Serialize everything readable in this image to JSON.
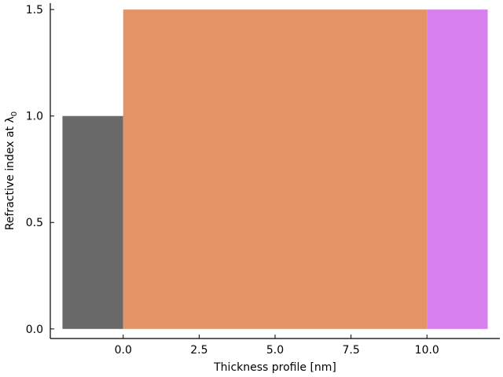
{
  "chart_data": {
    "type": "bar",
    "title": "",
    "xlabel": "Thickness profile [nm]",
    "ylabel_text": "Refractive index at λ",
    "ylabel_subscript": "0",
    "xlim": [
      -2.4,
      12.4
    ],
    "ylim": [
      -0.045,
      1.53
    ],
    "x_ticks": [
      0.0,
      2.5,
      5.0,
      7.5,
      10.0
    ],
    "x_tick_labels": [
      "0.0",
      "2.5",
      "5.0",
      "7.5",
      "10.0"
    ],
    "y_ticks": [
      0.0,
      0.5,
      1.0,
      1.5
    ],
    "y_tick_labels": [
      "0.0",
      "0.5",
      "1.0",
      "1.5"
    ],
    "grid": false,
    "legend": false,
    "layers": [
      {
        "x_start": -2.0,
        "x_end": 0.0,
        "value": 1.0,
        "color": "#696969"
      },
      {
        "x_start": 0.0,
        "x_end": 10.0,
        "value": 1.5,
        "color": "#e29467"
      },
      {
        "x_start": 10.0,
        "x_end": 12.0,
        "value": 1.5,
        "color": "#d77fed"
      }
    ]
  }
}
